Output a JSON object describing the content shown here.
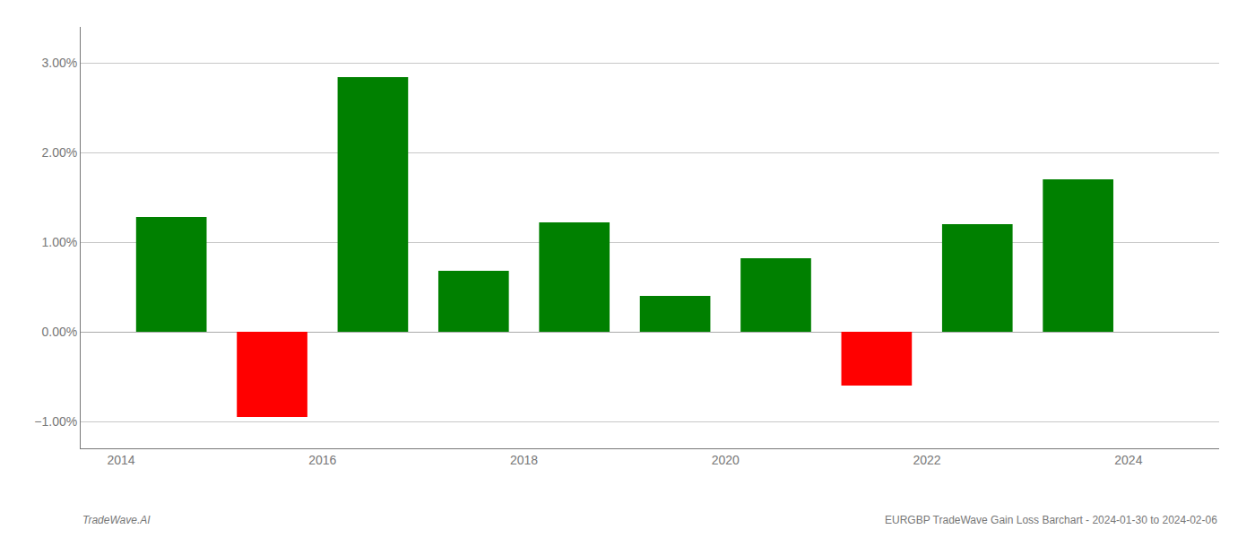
{
  "chart_data": {
    "type": "bar",
    "x": [
      2014.5,
      2015.5,
      2016.5,
      2017.5,
      2018.5,
      2019.5,
      2020.5,
      2021.5,
      2022.5,
      2023.5
    ],
    "values": [
      0.0128,
      -0.0095,
      0.0284,
      0.0068,
      0.0122,
      0.004,
      0.0082,
      -0.006,
      0.012,
      0.017
    ],
    "colors": [
      "#008000",
      "#ff0000",
      "#008000",
      "#008000",
      "#008000",
      "#008000",
      "#008000",
      "#ff0000",
      "#008000",
      "#008000"
    ],
    "xlim": [
      2013.6,
      2024.9
    ],
    "xticks": [
      2014,
      2016,
      2018,
      2020,
      2022,
      2024
    ],
    "ylim": [
      -0.013,
      0.034
    ],
    "yticks": [
      {
        "value": -0.01,
        "label": "−1.00%"
      },
      {
        "value": 0.0,
        "label": "0.00%"
      },
      {
        "value": 0.01,
        "label": "1.00%"
      },
      {
        "value": 0.02,
        "label": "2.00%"
      },
      {
        "value": 0.03,
        "label": "3.00%"
      }
    ],
    "grid": true,
    "annotations": [
      "TradeWave.AI",
      "EURGBP TradeWave Gain Loss Barchart - 2024-01-30 to 2024-02-06"
    ]
  }
}
